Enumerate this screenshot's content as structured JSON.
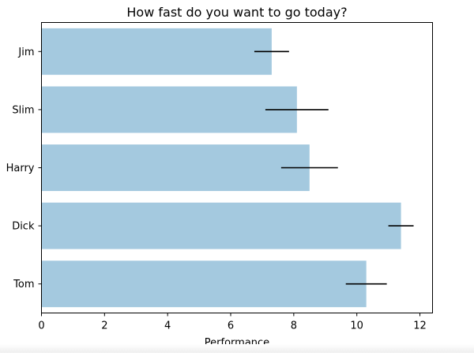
{
  "chart_data": {
    "type": "bar",
    "orientation": "horizontal",
    "title": "How fast do you want to go today?",
    "xlabel": "Performance",
    "ylabel": "",
    "categories": [
      "Tom",
      "Dick",
      "Harry",
      "Slim",
      "Jim"
    ],
    "values": [
      10.3,
      11.4,
      8.5,
      8.1,
      7.3
    ],
    "errors": [
      0.65,
      0.4,
      0.9,
      1.0,
      0.55
    ],
    "xlim": [
      0,
      12.4
    ],
    "xticks": [
      0,
      2,
      4,
      6,
      8,
      10,
      12
    ],
    "grid": false,
    "legend": "none",
    "bar_color": "#a4c9df",
    "error_color": "#000000"
  }
}
